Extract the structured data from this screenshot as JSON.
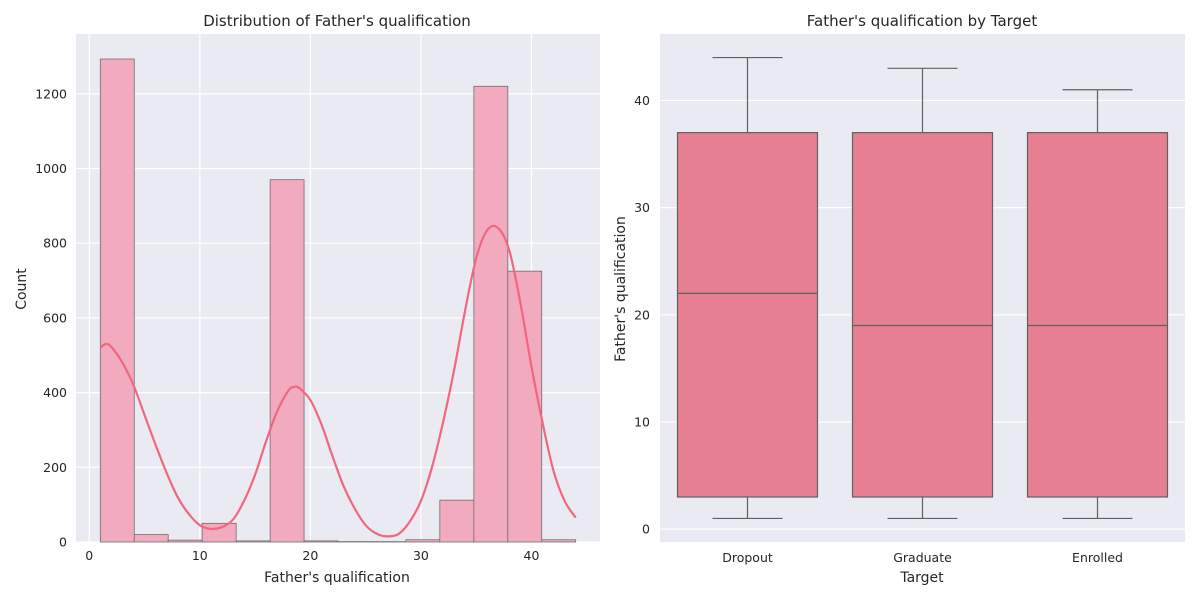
{
  "chart_data": [
    {
      "type": "bar",
      "title": "Distribution of Father's qualification",
      "xlabel": "Father's qualification",
      "ylabel": "Count",
      "xlim": [
        -1.2,
        46.2
      ],
      "ylim": [
        0,
        1360
      ],
      "xticks": [
        "0",
        "10",
        "20",
        "30",
        "40"
      ],
      "yticks": [
        "0",
        "200",
        "400",
        "600",
        "800",
        "1000",
        "1200"
      ],
      "xtick_values": [
        0,
        10,
        20,
        30,
        40
      ],
      "ytick_values": [
        0,
        200,
        400,
        600,
        800,
        1000,
        1200
      ],
      "bins": [
        {
          "x0": 1.0,
          "x1": 4.07,
          "count": 1293
        },
        {
          "x0": 4.07,
          "x1": 7.14,
          "count": 20
        },
        {
          "x0": 7.14,
          "x1": 10.21,
          "count": 5
        },
        {
          "x0": 10.21,
          "x1": 13.29,
          "count": 50
        },
        {
          "x0": 13.29,
          "x1": 16.36,
          "count": 3
        },
        {
          "x0": 16.36,
          "x1": 19.43,
          "count": 970
        },
        {
          "x0": 19.43,
          "x1": 22.5,
          "count": 3
        },
        {
          "x0": 22.5,
          "x1": 25.57,
          "count": 1
        },
        {
          "x0": 25.57,
          "x1": 28.64,
          "count": 1
        },
        {
          "x0": 28.64,
          "x1": 31.71,
          "count": 6
        },
        {
          "x0": 31.71,
          "x1": 34.79,
          "count": 112
        },
        {
          "x0": 34.79,
          "x1": 37.86,
          "count": 1220
        },
        {
          "x0": 37.86,
          "x1": 40.93,
          "count": 725
        },
        {
          "x0": 40.93,
          "x1": 44.0,
          "count": 6
        }
      ],
      "kde": {
        "x": [
          1,
          1.5,
          2,
          3,
          4,
          5,
          6,
          7,
          8,
          9,
          10,
          11,
          12,
          13,
          14,
          15,
          16,
          17,
          18,
          18.5,
          19,
          20,
          21,
          22,
          23,
          24,
          25,
          26,
          27,
          28,
          29,
          30,
          31,
          32,
          33,
          34,
          35,
          36,
          37,
          38,
          39,
          40,
          41,
          42,
          43,
          44
        ],
        "y": [
          520,
          530,
          522,
          480,
          420,
          340,
          260,
          185,
          120,
          75,
          45,
          35,
          40,
          60,
          110,
          180,
          270,
          350,
          405,
          415,
          412,
          380,
          315,
          230,
          150,
          90,
          45,
          22,
          15,
          22,
          55,
          110,
          200,
          320,
          460,
          620,
          760,
          835,
          840,
          780,
          640,
          470,
          320,
          190,
          110,
          65
        ]
      },
      "colors": {
        "bar": "#f2aabf",
        "bar_edge": "#6e6e6e",
        "kde": "#f0677f",
        "background": "#eaeaf2",
        "grid": "#ffffff"
      },
      "grid": true
    },
    {
      "type": "box",
      "title": "Father's qualification by Target",
      "xlabel": "Target",
      "ylabel": "Father's qualification",
      "ylim": [
        -1.2,
        46.2
      ],
      "yticks": [
        "0",
        "10",
        "20",
        "30",
        "40"
      ],
      "ytick_values": [
        0,
        10,
        20,
        30,
        40
      ],
      "categories": [
        "Dropout",
        "Graduate",
        "Enrolled"
      ],
      "boxes": [
        {
          "min": 1,
          "q1": 3,
          "median": 22,
          "q3": 37,
          "max": 44
        },
        {
          "min": 1,
          "q1": 3,
          "median": 19,
          "q3": 37,
          "max": 43
        },
        {
          "min": 1,
          "q1": 3,
          "median": 19,
          "q3": 37,
          "max": 41
        }
      ],
      "colors": {
        "box": "#e77f92",
        "line": "#606060",
        "background": "#eaeaf2",
        "grid": "#ffffff"
      },
      "grid": true
    }
  ]
}
